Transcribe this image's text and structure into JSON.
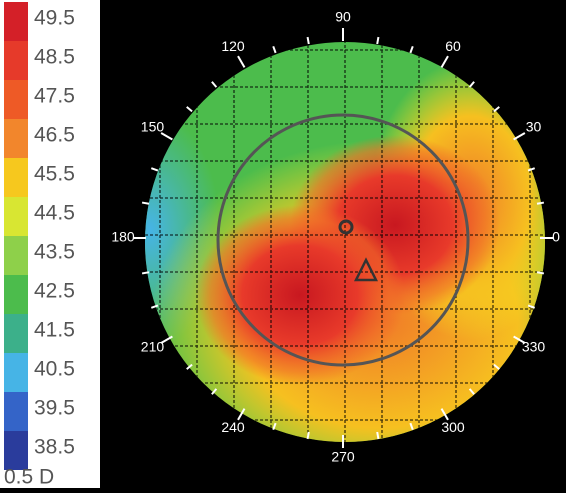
{
  "scale": {
    "labels": [
      "49.5",
      "48.5",
      "47.5",
      "46.5",
      "45.5",
      "44.5",
      "43.5",
      "42.5",
      "41.5",
      "40.5",
      "39.5",
      "38.5"
    ],
    "colors": [
      "#d42028",
      "#e63a2a",
      "#ee5a26",
      "#f2862c",
      "#f6c81e",
      "#d8e632",
      "#8ed04a",
      "#4cbc4c",
      "#3cb08a",
      "#46b4e6",
      "#3464c8",
      "#2a3c9c"
    ],
    "step": "0.5 D"
  },
  "angles": [
    {
      "label": "90",
      "deg": 90
    },
    {
      "label": "60",
      "deg": 60
    },
    {
      "label": "30",
      "deg": 30
    },
    {
      "label": "0",
      "deg": 0
    },
    {
      "label": "330",
      "deg": 330
    },
    {
      "label": "300",
      "deg": 300
    },
    {
      "label": "270",
      "deg": 270
    },
    {
      "label": "240",
      "deg": 240
    },
    {
      "label": "210",
      "deg": 210
    },
    {
      "label": "180",
      "deg": 180
    },
    {
      "label": "150",
      "deg": 150
    },
    {
      "label": "120",
      "deg": 120
    }
  ]
}
